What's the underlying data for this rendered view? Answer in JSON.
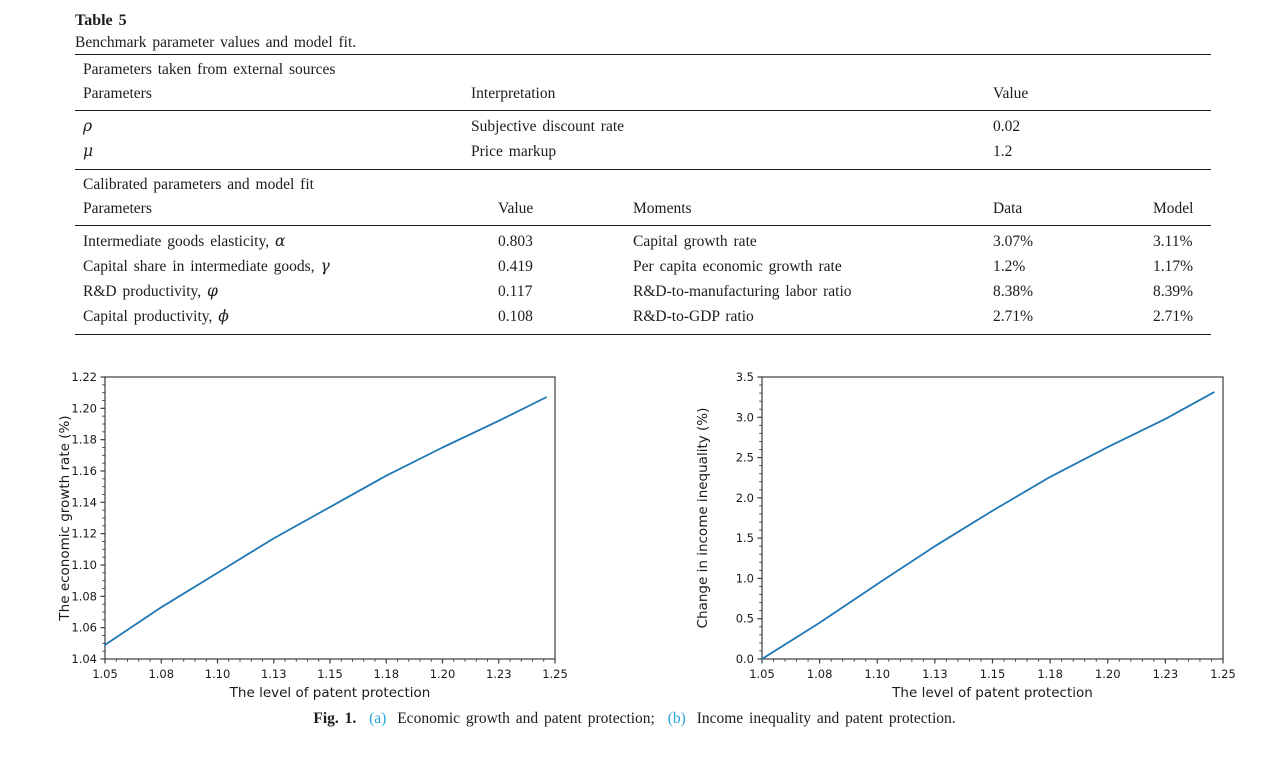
{
  "colors": {
    "line_blue": "#1f77b4",
    "caption_link_blue": "#2aa4d9",
    "axis_color": "#3c3c3c",
    "text_color": "#1a1a1a"
  },
  "table": {
    "label": "Table 5",
    "caption": "Benchmark parameter values and model fit.",
    "sections": [
      {
        "title": "Parameters taken from external sources",
        "headers": [
          "Parameters",
          "Interpretation",
          "Value"
        ],
        "rows": [
          [
            "ρ",
            "Subjective discount rate",
            "0.02"
          ],
          [
            "μ",
            "Price markup",
            "1.2"
          ]
        ]
      },
      {
        "title": "Calibrated parameters and model fit",
        "headers": [
          "Parameters",
          "Value",
          "Moments",
          "Data",
          "Model"
        ],
        "rows": [
          [
            "Intermediate goods elasticity, α",
            "0.803",
            "Capital growth rate",
            "3.07%",
            "3.11%"
          ],
          [
            "Capital share in intermediate goods, γ",
            "0.419",
            "Per capita economic growth rate",
            "1.2%",
            "1.17%"
          ],
          [
            "R&D productivity, φ",
            "0.117",
            "R&D-to-manufacturing labor ratio",
            "8.38%",
            "8.39%"
          ],
          [
            "Capital productivity, ϕ",
            "0.108",
            "R&D-to-GDP ratio",
            "2.71%",
            "2.71%"
          ]
        ]
      }
    ]
  },
  "figure_caption": {
    "prefix": "Fig. 1.",
    "a_label": "(a)",
    "a_text": "Economic growth and patent protection;",
    "b_label": "(b)",
    "b_text": "Income inequality and patent protection."
  },
  "chart_data": [
    {
      "id": "chart-a",
      "type": "line",
      "title": "",
      "xlabel": "The level of patent protection",
      "ylabel": "The economic growth rate (%)",
      "xlim": [
        1.05,
        1.25
      ],
      "ylim": [
        1.04,
        1.22
      ],
      "grid": false,
      "legend": "none",
      "xticks": [
        1.05,
        1.075,
        1.1,
        1.125,
        1.15,
        1.175,
        1.2,
        1.225,
        1.25
      ],
      "xtick_labels": [
        "1.05",
        "1.08",
        "1.10",
        "1.13",
        "1.15",
        "1.18",
        "1.20",
        "1.23",
        "1.25"
      ],
      "x_minor_step": 0.005,
      "yticks": [
        1.04,
        1.06,
        1.08,
        1.1,
        1.12,
        1.14,
        1.16,
        1.18,
        1.2,
        1.22
      ],
      "ytick_labels": [
        "1.04",
        "1.06",
        "1.08",
        "1.10",
        "1.12",
        "1.14",
        "1.16",
        "1.18",
        "1.20",
        "1.22"
      ],
      "y_minor_step": 0.005,
      "line_color": "#1f77b4",
      "series": [
        {
          "name": "economic growth rate",
          "x": [
            1.05,
            1.075,
            1.1,
            1.125,
            1.15,
            1.175,
            1.2,
            1.225,
            1.246
          ],
          "y": [
            1.049,
            1.073,
            1.095,
            1.117,
            1.137,
            1.157,
            1.175,
            1.192,
            1.207
          ]
        }
      ]
    },
    {
      "id": "chart-b",
      "type": "line",
      "title": "",
      "xlabel": "The level of patent protection",
      "ylabel": "Change in income inequality (%)",
      "xlim": [
        1.05,
        1.25
      ],
      "ylim": [
        0.0,
        3.5
      ],
      "grid": false,
      "legend": "none",
      "xticks": [
        1.05,
        1.075,
        1.1,
        1.125,
        1.15,
        1.175,
        1.2,
        1.225,
        1.25
      ],
      "xtick_labels": [
        "1.05",
        "1.08",
        "1.10",
        "1.13",
        "1.15",
        "1.18",
        "1.20",
        "1.23",
        "1.25"
      ],
      "x_minor_step": 0.005,
      "yticks": [
        0.0,
        0.5,
        1.0,
        1.5,
        2.0,
        2.5,
        3.0,
        3.5
      ],
      "ytick_labels": [
        "0.0",
        "0.5",
        "1.0",
        "1.5",
        "2.0",
        "2.5",
        "3.0",
        "3.5"
      ],
      "y_minor_step": 0.1,
      "line_color": "#1f77b4",
      "series": [
        {
          "name": "change in income inequality",
          "x": [
            1.05,
            1.075,
            1.1,
            1.125,
            1.15,
            1.175,
            1.2,
            1.225,
            1.246
          ],
          "y": [
            0.0,
            0.45,
            0.93,
            1.4,
            1.84,
            2.26,
            2.63,
            2.98,
            3.31
          ]
        }
      ]
    }
  ]
}
